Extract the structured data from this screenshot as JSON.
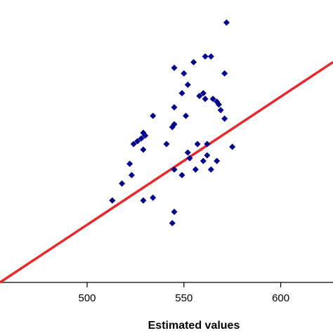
{
  "chart_data": {
    "type": "scatter",
    "title": "",
    "xlabel": "Estimated  values",
    "ylabel": "",
    "xlim": [
      455,
      627
    ],
    "ylim": [
      0,
      1
    ],
    "xticks": [
      500,
      550,
      600
    ],
    "grid": false,
    "legend": "none",
    "marker_color": "#00008B",
    "line_color": "#E8282B",
    "series": [
      {
        "marker": "diamond",
        "points": [
          {
            "x": 572,
            "y": 0.92
          },
          {
            "x": 561,
            "y": 0.8
          },
          {
            "x": 564,
            "y": 0.8
          },
          {
            "x": 555,
            "y": 0.78
          },
          {
            "x": 545,
            "y": 0.76
          },
          {
            "x": 550,
            "y": 0.74
          },
          {
            "x": 571,
            "y": 0.74
          },
          {
            "x": 552,
            "y": 0.7
          },
          {
            "x": 549,
            "y": 0.67
          },
          {
            "x": 558,
            "y": 0.66
          },
          {
            "x": 560,
            "y": 0.67
          },
          {
            "x": 561,
            "y": 0.65
          },
          {
            "x": 565,
            "y": 0.65
          },
          {
            "x": 567,
            "y": 0.64
          },
          {
            "x": 568,
            "y": 0.63
          },
          {
            "x": 545,
            "y": 0.62
          },
          {
            "x": 569,
            "y": 0.61
          },
          {
            "x": 534,
            "y": 0.59
          },
          {
            "x": 551,
            "y": 0.59
          },
          {
            "x": 571,
            "y": 0.58
          },
          {
            "x": 545,
            "y": 0.56
          },
          {
            "x": 544,
            "y": 0.55
          },
          {
            "x": 529,
            "y": 0.53
          },
          {
            "x": 530,
            "y": 0.52
          },
          {
            "x": 528,
            "y": 0.51
          },
          {
            "x": 526,
            "y": 0.5
          },
          {
            "x": 524,
            "y": 0.49
          },
          {
            "x": 541,
            "y": 0.49
          },
          {
            "x": 557,
            "y": 0.49
          },
          {
            "x": 562,
            "y": 0.49
          },
          {
            "x": 575,
            "y": 0.48
          },
          {
            "x": 529,
            "y": 0.47
          },
          {
            "x": 552,
            "y": 0.46
          },
          {
            "x": 562,
            "y": 0.45
          },
          {
            "x": 553,
            "y": 0.44
          },
          {
            "x": 560,
            "y": 0.43
          },
          {
            "x": 567,
            "y": 0.43
          },
          {
            "x": 522,
            "y": 0.42
          },
          {
            "x": 545,
            "y": 0.4
          },
          {
            "x": 556,
            "y": 0.4
          },
          {
            "x": 564,
            "y": 0.4
          },
          {
            "x": 523,
            "y": 0.38
          },
          {
            "x": 549,
            "y": 0.38
          },
          {
            "x": 518,
            "y": 0.35
          },
          {
            "x": 534,
            "y": 0.3
          },
          {
            "x": 513,
            "y": 0.29
          },
          {
            "x": 529,
            "y": 0.29
          },
          {
            "x": 545,
            "y": 0.25
          },
          {
            "x": 544,
            "y": 0.21
          }
        ]
      }
    ],
    "fit_line": {
      "x": [
        455,
        627
      ],
      "y": [
        0.0,
        0.78
      ]
    }
  }
}
